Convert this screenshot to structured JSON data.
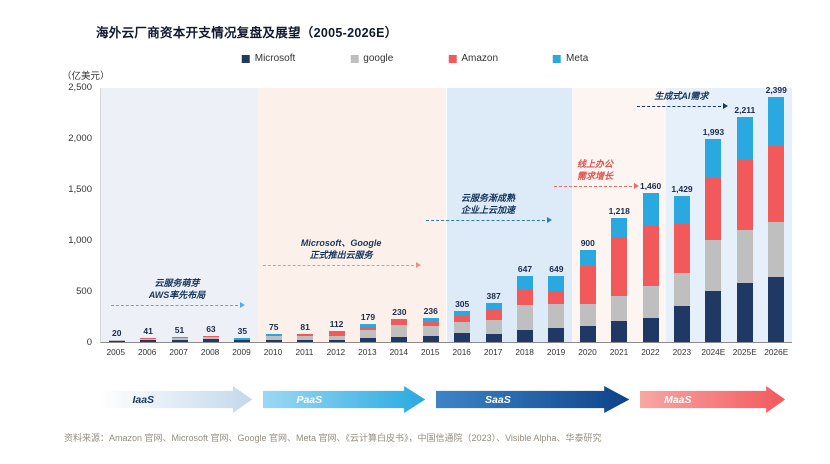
{
  "title": "海外云厂商资本开支情况复盘及展望（2005-2026E）",
  "unit_label": "（亿美元）",
  "legend": [
    {
      "label": "Microsoft",
      "color": "#203864"
    },
    {
      "label": "google",
      "color": "#bfbfbf"
    },
    {
      "label": "Amazon",
      "color": "#f2595b"
    },
    {
      "label": "Meta",
      "color": "#29a9e0"
    }
  ],
  "chart_data": {
    "type": "bar",
    "stacked": true,
    "title": "海外云厂商资本开支情况复盘及展望（2005-2026E）",
    "xlabel": "",
    "ylabel": "（亿美元）",
    "ylim": [
      0,
      2500
    ],
    "yticks": [
      "0",
      "500",
      "1,000",
      "1,500",
      "2,000",
      "2,500"
    ],
    "grid": "off",
    "legend_position": "top",
    "categories": [
      "2005",
      "2006",
      "2007",
      "2008",
      "2009",
      "2010",
      "2011",
      "2012",
      "2013",
      "2014",
      "2015",
      "2016",
      "2017",
      "2018",
      "2019",
      "2020",
      "2021",
      "2022",
      "2023",
      "2024E",
      "2025E",
      "2026E"
    ],
    "series": [
      {
        "name": "Microsoft",
        "color": "#203864",
        "values": [
          8,
          15,
          20,
          31,
          15,
          19,
          23,
          24,
          42,
          53,
          59,
          91,
          81,
          116,
          139,
          154,
          206,
          239,
          352,
          500,
          580,
          640
        ]
      },
      {
        "name": "google",
        "color": "#bfbfbf",
        "values": [
          8,
          19,
          23,
          23,
          8,
          40,
          34,
          33,
          74,
          110,
          100,
          102,
          131,
          250,
          235,
          223,
          246,
          315,
          323,
          500,
          520,
          540
        ]
      },
      {
        "name": "Amazon",
        "color": "#f2595b",
        "values": [
          4,
          5,
          6,
          7,
          9,
          10,
          18,
          38,
          34,
          49,
          52,
          67,
          107,
          142,
          124,
          366,
          580,
          592,
          480,
          610,
          680,
          740
        ]
      },
      {
        "name": "Meta",
        "color": "#29a9e0",
        "values": [
          0,
          2,
          2,
          2,
          3,
          6,
          6,
          17,
          29,
          18,
          25,
          45,
          68,
          139,
          151,
          157,
          186,
          314,
          274,
          383,
          431,
          479
        ]
      }
    ],
    "totals": [
      20,
      41,
      51,
      63,
      35,
      75,
      81,
      112,
      179,
      230,
      236,
      305,
      387,
      647,
      649,
      900,
      1218,
      1460,
      1429,
      1993,
      2211,
      2399
    ],
    "total_labels": [
      "20",
      "41",
      "51",
      "63",
      "35",
      "75",
      "81",
      "112",
      "179",
      "230",
      "236",
      "305",
      "387",
      "647",
      "649",
      "900",
      "1,218",
      "1,460",
      "1,429",
      "1,993",
      "2,211",
      "2,399"
    ]
  },
  "bands": [
    {
      "years": "2005-2009",
      "col_start": 0,
      "col_end": 5,
      "color": "#edf0f6"
    },
    {
      "years": "2010-2015",
      "col_start": 5,
      "col_end": 11,
      "color": "#fcf0eb"
    },
    {
      "years": "2016-2019",
      "col_start": 11,
      "col_end": 15,
      "color": "#dcebf7"
    },
    {
      "years": "2020-2022",
      "col_start": 15,
      "col_end": 18,
      "color": "#fdf5f1"
    },
    {
      "years": "2023-2026E",
      "col_start": 18,
      "col_end": 22,
      "color": "#e5f0fa"
    }
  ],
  "annotations": [
    {
      "lines": [
        "云服务萌芽",
        "AWS率先布局"
      ],
      "text_color": "#17365d",
      "arrow_color": "#45b6e4"
    },
    {
      "lines": [
        "Microsoft、Google",
        "正式推出云服务"
      ],
      "text_color": "#17365d",
      "arrow_color": "#f0908c"
    },
    {
      "lines": [
        "云服务渐成熟",
        "企业上云加速"
      ],
      "text_color": "#17365d",
      "arrow_color": "#2e79bd"
    },
    {
      "lines": [
        "线上办公",
        "需求增长"
      ],
      "text_color": "#e0514e",
      "arrow_color": "#ef6a64"
    },
    {
      "lines": [
        "生成式AI需求"
      ],
      "text_color": "#17365d",
      "arrow_color": "#17365d"
    }
  ],
  "stages": [
    {
      "label": "IaaS",
      "text_color": "#17365d",
      "color_start": "#fdfeff",
      "color_end": "#c3d8eb"
    },
    {
      "label": "PaaS",
      "text_color": "#ffffff",
      "color_start": "#9bd9f3",
      "color_end": "#29a9e0"
    },
    {
      "label": "SaaS",
      "text_color": "#ffffff",
      "color_start": "#3c85c6",
      "color_end": "#0f4289"
    },
    {
      "label": "MaaS",
      "text_color": "#ffffff",
      "color_start": "#f8a7a5",
      "color_end": "#f2595b"
    }
  ],
  "source": "资料来源：Amazon 官网、Microsoft 官网、Google 官网、Meta 官网、《云计算白皮书》，中国信通院（2023）、Visible Alpha、华泰研究"
}
